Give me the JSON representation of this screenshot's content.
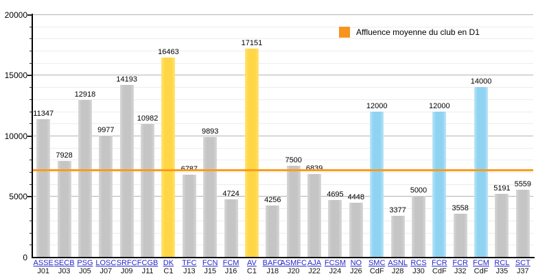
{
  "chart_data": {
    "type": "bar",
    "legend": {
      "label": "Affluence moyenne du club en D1",
      "swatch_color": "#F7941E"
    },
    "y_axis": {
      "min": 0,
      "max": 20000,
      "major_step": 5000,
      "minor_step": 1000,
      "major_tick_labels": [
        "0",
        "5000",
        "10000",
        "15000",
        "20000"
      ]
    },
    "average_line": {
      "approx_value": 7200,
      "color": "#FB9B1B"
    },
    "bar_colors": {
      "league": "#C5C5C5",
      "c1": "#FFD645",
      "cdf": "#8FD3F2"
    },
    "bars": [
      {
        "club": "ASSE",
        "match": "J01",
        "value": 11347
      },
      {
        "club": "SECB",
        "match": "J03",
        "value": 7928
      },
      {
        "club": "PSG",
        "match": "J05",
        "value": 12918
      },
      {
        "club": "LOSC",
        "match": "J07",
        "value": 9977
      },
      {
        "club": "SRFC",
        "match": "J09",
        "value": 14193
      },
      {
        "club": "FCGB",
        "match": "J11",
        "value": 10982
      },
      {
        "club": "DK",
        "match": "C1",
        "value": 16463
      },
      {
        "club": "TFC",
        "match": "J13",
        "value": 6787
      },
      {
        "club": "FCN",
        "match": "J15",
        "value": 9893
      },
      {
        "club": "FCM",
        "match": "J16",
        "value": 4724
      },
      {
        "club": "AV",
        "match": "C1",
        "value": 17151
      },
      {
        "club": "BAFC",
        "match": "J18",
        "value": 4256
      },
      {
        "club": "ASMFC",
        "match": "J20",
        "value": 7500
      },
      {
        "club": "AJA",
        "match": "J22",
        "value": 6839
      },
      {
        "club": "FCSM",
        "match": "J24",
        "value": 4695
      },
      {
        "club": "NO",
        "match": "J26",
        "value": 4448
      },
      {
        "club": "SMC",
        "match": "CdF",
        "value": 12000
      },
      {
        "club": "ASNL",
        "match": "J28",
        "value": 3377
      },
      {
        "club": "RCS",
        "match": "J30",
        "value": 5000
      },
      {
        "club": "FCR",
        "match": "CdF",
        "value": 12000
      },
      {
        "club": "FCR",
        "match": "J32",
        "value": 3558
      },
      {
        "club": "FCM",
        "match": "CdF",
        "value": 14000
      },
      {
        "club": "RCL",
        "match": "J35",
        "value": 5191
      },
      {
        "club": "SCT",
        "match": "J37",
        "value": 5559
      }
    ]
  }
}
